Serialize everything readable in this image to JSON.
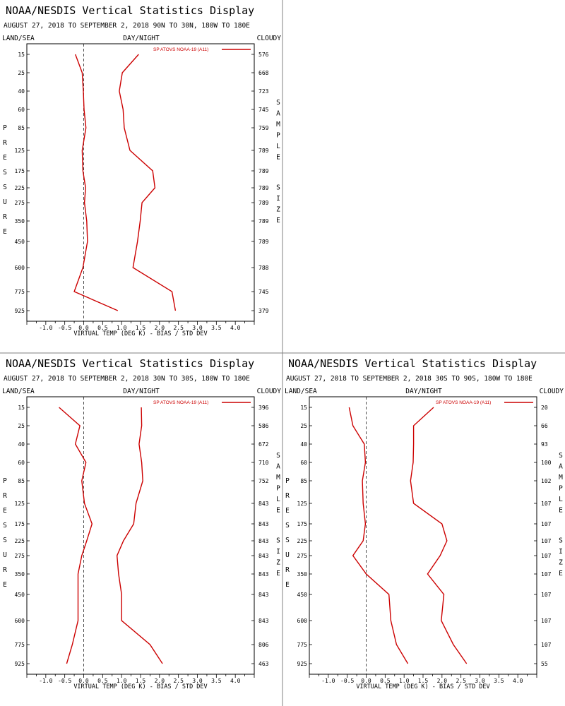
{
  "page": {
    "background": "#ffffff"
  },
  "chart_data": [
    {
      "type": "line",
      "title": "NOAA/NESDIS Vertical Statistics Display",
      "subtitle": "AUGUST 27, 2018 TO SEPTEMBER 2, 2018  90N TO 30N, 180W TO 180E",
      "label_left": "LAND/SEA",
      "label_center": "DAY/NIGHT",
      "label_right": "CLOUDY",
      "xlabel": "VIRTUAL TEMP (DEG K) - BIAS / STD DEV",
      "ylabel": "PRESSURE",
      "y2label": "SAMPLE SIZE",
      "xlim": [
        -1.5,
        4.5
      ],
      "x_ticks": [
        "-1.0",
        "-0.5",
        "0.0",
        "0.5",
        "1.0",
        "1.5",
        "2.0",
        "2.5",
        "3.0",
        "3.5",
        "4.0"
      ],
      "legend": "SP ATOVS NOAA-19 (A11)",
      "color": "#cc0000",
      "pressure_levels": [
        "15",
        "25",
        "40",
        "60",
        "85",
        "125",
        "175",
        "225",
        "275",
        "350",
        "450",
        "600",
        "775",
        "925"
      ],
      "sample_size": [
        "576",
        "668",
        "723",
        "745",
        "759",
        "789",
        "789",
        "789",
        "789",
        "789",
        "789",
        "788",
        "745",
        "379"
      ],
      "series": [
        {
          "stat": "bias",
          "values": [
            -0.22,
            -0.04,
            -0.01,
            0.01,
            0.06,
            -0.04,
            -0.02,
            0.05,
            0.02,
            0.08,
            0.1,
            -0.02,
            -0.25,
            0.9
          ]
        },
        {
          "stat": "std_dev",
          "values": [
            1.45,
            1.02,
            0.94,
            1.04,
            1.07,
            1.22,
            1.82,
            1.88,
            1.54,
            1.49,
            1.42,
            1.3,
            2.33,
            2.42
          ]
        }
      ]
    },
    {
      "type": "line",
      "title": "NOAA/NESDIS Vertical Statistics Display",
      "subtitle": "AUGUST 27, 2018 TO SEPTEMBER 2, 2018  30N TO 30S, 180W TO 180E",
      "label_left": "LAND/SEA",
      "label_center": "DAY/NIGHT",
      "label_right": "CLOUDY",
      "xlabel": "VIRTUAL TEMP (DEG K) - BIAS / STD DEV",
      "ylabel": "PRESSURE",
      "y2label": "SAMPLE SIZE",
      "xlim": [
        -1.5,
        4.5
      ],
      "x_ticks": [
        "-1.0",
        "-0.5",
        "0.0",
        "0.5",
        "1.0",
        "1.5",
        "2.0",
        "2.5",
        "3.0",
        "3.5",
        "4.0"
      ],
      "legend": "SP ATOVS NOAA-19 (A11)",
      "color": "#cc0000",
      "pressure_levels": [
        "15",
        "25",
        "40",
        "60",
        "85",
        "125",
        "175",
        "225",
        "275",
        "350",
        "450",
        "600",
        "775",
        "925"
      ],
      "sample_size": [
        "396",
        "586",
        "672",
        "710",
        "752",
        "843",
        "843",
        "843",
        "843",
        "843",
        "843",
        "843",
        "806",
        "463"
      ],
      "series": [
        {
          "stat": "bias",
          "values": [
            -0.65,
            -0.1,
            -0.22,
            0.06,
            -0.05,
            0.02,
            0.22,
            0.08,
            -0.05,
            -0.15,
            -0.15,
            -0.15,
            -0.3,
            -0.45
          ]
        },
        {
          "stat": "std_dev",
          "values": [
            1.52,
            1.53,
            1.46,
            1.53,
            1.56,
            1.38,
            1.32,
            1.05,
            0.88,
            0.92,
            1.0,
            1.0,
            1.75,
            2.08
          ]
        }
      ]
    },
    {
      "type": "line",
      "title": "NOAA/NESDIS Vertical Statistics Display",
      "subtitle": "AUGUST 27, 2018 TO SEPTEMBER 2, 2018  30S TO 90S, 180W TO 180E",
      "label_left": "LAND/SEA",
      "label_center": "DAY/NIGHT",
      "label_right": "CLOUDY",
      "xlabel": "VIRTUAL TEMP (DEG K) - BIAS / STD DEV",
      "ylabel": "PRESSURE",
      "y2label": "SAMPLE SIZE",
      "xlim": [
        -1.5,
        4.5
      ],
      "x_ticks": [
        "-1.0",
        "-0.5",
        "0.0",
        "0.5",
        "1.0",
        "1.5",
        "2.0",
        "2.5",
        "3.0",
        "3.5",
        "4.0"
      ],
      "legend": "SP ATOVS NOAA-19 (A11)",
      "color": "#cc0000",
      "pressure_levels": [
        "15",
        "25",
        "40",
        "60",
        "85",
        "125",
        "175",
        "225",
        "275",
        "350",
        "450",
        "600",
        "775",
        "925"
      ],
      "sample_size": [
        "20",
        "66",
        "93",
        "100",
        "102",
        "107",
        "107",
        "107",
        "107",
        "107",
        "107",
        "107",
        "107",
        "55"
      ],
      "series": [
        {
          "stat": "bias",
          "values": [
            -0.45,
            -0.35,
            -0.05,
            -0.02,
            -0.1,
            -0.08,
            -0.02,
            -0.08,
            -0.35,
            0.0,
            0.6,
            0.65,
            0.8,
            1.1
          ]
        },
        {
          "stat": "std_dev",
          "values": [
            1.78,
            1.25,
            1.25,
            1.24,
            1.17,
            1.25,
            2.0,
            2.13,
            1.95,
            1.62,
            2.05,
            1.98,
            2.3,
            2.65
          ]
        }
      ]
    }
  ]
}
